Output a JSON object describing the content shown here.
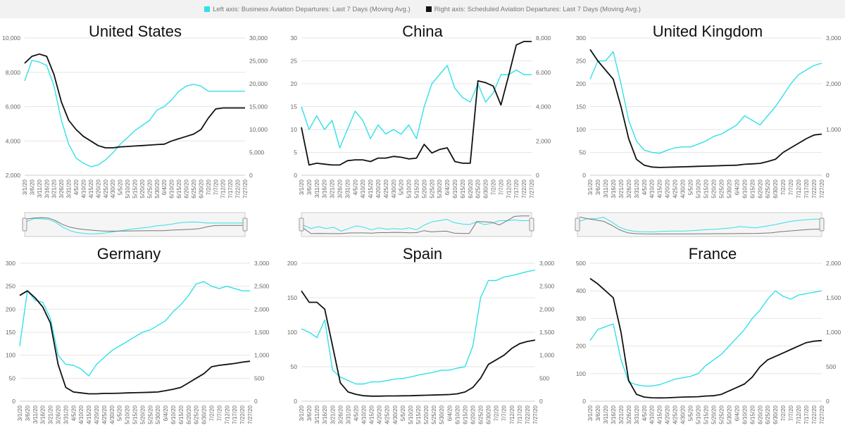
{
  "legend": {
    "left_label": "Left axis: Business Aviation Departures: Last 7 Days (Moving Avg.)",
    "right_label": "Right axis: Scheduled Aviation Departures: Last 7 Days (Moving Avg.)",
    "left_color": "#33e0e8",
    "right_color": "#111111"
  },
  "chart_data": [
    {
      "type": "line",
      "title": "United States",
      "x": [
        "3/1/20",
        "3/6/20",
        "3/11/20",
        "3/16/20",
        "3/21/20",
        "3/26/20",
        "3/31/20",
        "4/5/20",
        "4/10/20",
        "4/15/20",
        "4/20/20",
        "4/25/20",
        "4/30/20",
        "5/5/20",
        "5/10/20",
        "5/15/20",
        "5/20/20",
        "5/25/20",
        "5/30/20",
        "6/4/20",
        "6/10/20",
        "6/15/20",
        "6/20/20",
        "6/25/20",
        "6/30/20",
        "7/2/20",
        "7/7/20",
        "7/12/20",
        "7/17/20",
        "7/22/20",
        "7/27/20"
      ],
      "left_ticks": [
        "2,000",
        "4,000",
        "6,000",
        "8,000",
        "10,000"
      ],
      "right_ticks": [
        "0",
        "5,000",
        "10,000",
        "15,000",
        "20,000",
        "25,000",
        "30,000"
      ],
      "left_range": [
        2000,
        10000
      ],
      "right_range": [
        0,
        30000
      ],
      "series": [
        {
          "axis": "left",
          "values": [
            7500,
            8700,
            8600,
            8400,
            7200,
            5200,
            3800,
            3000,
            2700,
            2500,
            2600,
            2900,
            3300,
            3800,
            4200,
            4600,
            4900,
            5200,
            5800,
            6000,
            6400,
            6900,
            7200,
            7300,
            7200,
            6900,
            6900,
            6900,
            6900,
            6900,
            6900
          ]
        },
        {
          "axis": "right",
          "values": [
            24500,
            26000,
            26500,
            26000,
            22000,
            16000,
            12000,
            10000,
            8500,
            7500,
            6500,
            6000,
            6000,
            6200,
            6300,
            6400,
            6500,
            6600,
            6700,
            6800,
            7500,
            8000,
            8500,
            9000,
            10000,
            12500,
            14500,
            14700,
            14700,
            14700,
            14700
          ]
        }
      ],
      "navigator": true
    },
    {
      "type": "line",
      "title": "China",
      "x": [
        "3/1/20",
        "3/6/20",
        "3/11/20",
        "3/16/20",
        "3/21/20",
        "3/26/20",
        "3/31/20",
        "4/5/20",
        "4/10/20",
        "4/15/20",
        "4/20/20",
        "4/25/20",
        "4/30/20",
        "5/5/20",
        "5/10/20",
        "5/15/20",
        "5/20/20",
        "5/25/20",
        "5/30/20",
        "6/4/20",
        "6/10/20",
        "6/15/20",
        "6/20/20",
        "6/25/20",
        "6/30/20",
        "7/2/20",
        "7/7/20",
        "7/12/20",
        "7/17/20",
        "7/22/20",
        "7/27/20"
      ],
      "left_ticks": [
        "0",
        "5",
        "10",
        "15",
        "20",
        "25",
        "30"
      ],
      "right_ticks": [
        "0",
        "2,000",
        "4,000",
        "6,000",
        "8,000"
      ],
      "left_range": [
        0,
        30
      ],
      "right_range": [
        0,
        8000
      ],
      "series": [
        {
          "axis": "left",
          "values": [
            15,
            10,
            13,
            10,
            12,
            6,
            10,
            14,
            12,
            8,
            11,
            9,
            10,
            9,
            11,
            8,
            15,
            20,
            22,
            24,
            19,
            17,
            16,
            20,
            16,
            18,
            22,
            22,
            23,
            22,
            22
          ]
        },
        {
          "axis": "right",
          "values": [
            2800,
            600,
            700,
            650,
            600,
            600,
            850,
            900,
            900,
            800,
            1000,
            1000,
            1100,
            1050,
            950,
            1000,
            1800,
            1300,
            1500,
            1600,
            800,
            700,
            700,
            5500,
            5400,
            5200,
            4100,
            5800,
            7600,
            7800,
            7800
          ]
        }
      ],
      "navigator": true
    },
    {
      "type": "line",
      "title": "United Kingdom",
      "x": [
        "3/1/20",
        "3/6/20",
        "3/11/20",
        "3/16/20",
        "3/21/20",
        "3/26/20",
        "3/31/20",
        "4/5/20",
        "4/10/20",
        "4/15/20",
        "4/20/20",
        "4/25/20",
        "4/30/20",
        "5/5/20",
        "5/10/20",
        "5/15/20",
        "5/20/20",
        "5/25/20",
        "5/30/20",
        "6/4/20",
        "6/10/20",
        "6/15/20",
        "6/20/20",
        "6/25/20",
        "6/30/20",
        "7/2/20",
        "7/7/20",
        "7/12/20",
        "7/17/20",
        "7/22/20",
        "7/27/20"
      ],
      "left_ticks": [
        "0",
        "50",
        "100",
        "150",
        "200",
        "250",
        "300"
      ],
      "right_ticks": [
        "0",
        "1,000",
        "2,000",
        "3,000"
      ],
      "left_range": [
        0,
        300
      ],
      "right_range": [
        0,
        3000
      ],
      "series": [
        {
          "axis": "left",
          "values": [
            210,
            250,
            250,
            270,
            200,
            120,
            75,
            55,
            50,
            48,
            55,
            60,
            62,
            62,
            68,
            75,
            85,
            90,
            100,
            110,
            130,
            120,
            110,
            130,
            150,
            175,
            200,
            220,
            230,
            240,
            245
          ]
        },
        {
          "axis": "right",
          "values": [
            2750,
            2500,
            2300,
            2100,
            1500,
            800,
            350,
            220,
            180,
            170,
            175,
            180,
            185,
            190,
            195,
            200,
            205,
            210,
            215,
            220,
            240,
            250,
            260,
            300,
            350,
            500,
            600,
            700,
            800,
            880,
            900
          ]
        }
      ],
      "navigator": true
    },
    {
      "type": "line",
      "title": "Germany",
      "x": [
        "3/1/20",
        "3/6/20",
        "3/11/20",
        "3/16/20",
        "3/21/20",
        "3/26/20",
        "3/31/20",
        "4/5/20",
        "4/10/20",
        "4/15/20",
        "4/20/20",
        "4/25/20",
        "4/30/20",
        "5/5/20",
        "5/10/20",
        "5/15/20",
        "5/20/20",
        "5/25/20",
        "5/30/20",
        "6/4/20",
        "6/10/20",
        "6/15/20",
        "6/20/20",
        "6/25/20",
        "6/30/20",
        "7/2/20",
        "7/7/20",
        "7/12/20",
        "7/17/20",
        "7/22/20",
        "7/27/20"
      ],
      "left_ticks": [
        "0",
        "50",
        "100",
        "150",
        "200",
        "250",
        "300"
      ],
      "right_ticks": [
        "0",
        "500",
        "1,000",
        "1,500",
        "2,000",
        "2,500",
        "3,000"
      ],
      "left_range": [
        0,
        300
      ],
      "right_range": [
        0,
        3000
      ],
      "series": [
        {
          "axis": "left",
          "values": [
            120,
            240,
            220,
            215,
            180,
            100,
            80,
            78,
            70,
            55,
            80,
            95,
            110,
            120,
            130,
            140,
            150,
            155,
            165,
            175,
            195,
            210,
            230,
            255,
            260,
            250,
            245,
            250,
            245,
            240,
            240
          ]
        },
        {
          "axis": "right",
          "values": [
            2300,
            2400,
            2250,
            2050,
            1700,
            800,
            300,
            200,
            180,
            160,
            160,
            170,
            170,
            175,
            180,
            185,
            190,
            195,
            200,
            230,
            260,
            300,
            400,
            500,
            600,
            750,
            780,
            800,
            820,
            850,
            870
          ]
        }
      ],
      "navigator": false
    },
    {
      "type": "line",
      "title": "Spain",
      "x": [
        "3/1/20",
        "3/6/20",
        "3/11/20",
        "3/16/20",
        "3/21/20",
        "3/26/20",
        "3/31/20",
        "4/5/20",
        "4/10/20",
        "4/15/20",
        "4/20/20",
        "4/25/20",
        "4/30/20",
        "5/5/20",
        "5/10/20",
        "5/15/20",
        "5/20/20",
        "5/25/20",
        "5/30/20",
        "6/4/20",
        "6/10/20",
        "6/15/20",
        "6/20/20",
        "6/25/20",
        "6/30/20",
        "7/2/20",
        "7/7/20",
        "7/12/20",
        "7/17/20",
        "7/22/20",
        "7/27/20"
      ],
      "left_ticks": [
        "0",
        "50",
        "100",
        "150",
        "200"
      ],
      "right_ticks": [
        "0",
        "500",
        "1,000",
        "1,500",
        "2,000",
        "2,500",
        "3,000"
      ],
      "left_range": [
        0,
        200
      ],
      "right_range": [
        0,
        3000
      ],
      "series": [
        {
          "axis": "left",
          "values": [
            105,
            100,
            92,
            118,
            45,
            35,
            30,
            25,
            25,
            28,
            28,
            30,
            32,
            33,
            35,
            38,
            40,
            42,
            45,
            45,
            48,
            50,
            80,
            150,
            175,
            175,
            180,
            182,
            185,
            188,
            190
          ]
        },
        {
          "axis": "right",
          "values": [
            2400,
            2150,
            2150,
            2000,
            1200,
            400,
            200,
            150,
            120,
            110,
            110,
            115,
            115,
            118,
            120,
            125,
            130,
            135,
            140,
            145,
            160,
            200,
            300,
            500,
            800,
            900,
            1000,
            1150,
            1250,
            1300,
            1330
          ]
        }
      ],
      "navigator": false
    },
    {
      "type": "line",
      "title": "France",
      "x": [
        "3/1/20",
        "3/6/20",
        "3/11/20",
        "3/16/20",
        "3/21/20",
        "3/26/20",
        "3/31/20",
        "4/5/20",
        "4/10/20",
        "4/15/20",
        "4/20/20",
        "4/25/20",
        "4/30/20",
        "5/5/20",
        "5/10/20",
        "5/15/20",
        "5/20/20",
        "5/25/20",
        "5/30/20",
        "6/4/20",
        "6/10/20",
        "6/15/20",
        "6/20/20",
        "6/25/20",
        "6/30/20",
        "7/2/20",
        "7/7/20",
        "7/12/20",
        "7/17/20",
        "7/22/20",
        "7/27/20"
      ],
      "left_ticks": [
        "0",
        "100",
        "200",
        "300",
        "400",
        "500"
      ],
      "right_ticks": [
        "0",
        "500",
        "1,000",
        "1,500",
        "2,000"
      ],
      "left_range": [
        0,
        500
      ],
      "right_range": [
        0,
        2000
      ],
      "series": [
        {
          "axis": "left",
          "values": [
            220,
            260,
            270,
            280,
            150,
            70,
            60,
            55,
            55,
            60,
            70,
            80,
            85,
            90,
            100,
            130,
            150,
            170,
            200,
            230,
            260,
            300,
            330,
            370,
            400,
            380,
            370,
            385,
            390,
            395,
            400
          ]
        },
        {
          "axis": "right",
          "values": [
            1780,
            1700,
            1600,
            1500,
            1000,
            300,
            100,
            60,
            50,
            48,
            50,
            55,
            60,
            62,
            65,
            75,
            80,
            100,
            150,
            200,
            250,
            350,
            500,
            600,
            650,
            700,
            750,
            800,
            850,
            870,
            880
          ]
        }
      ],
      "navigator": false
    }
  ]
}
